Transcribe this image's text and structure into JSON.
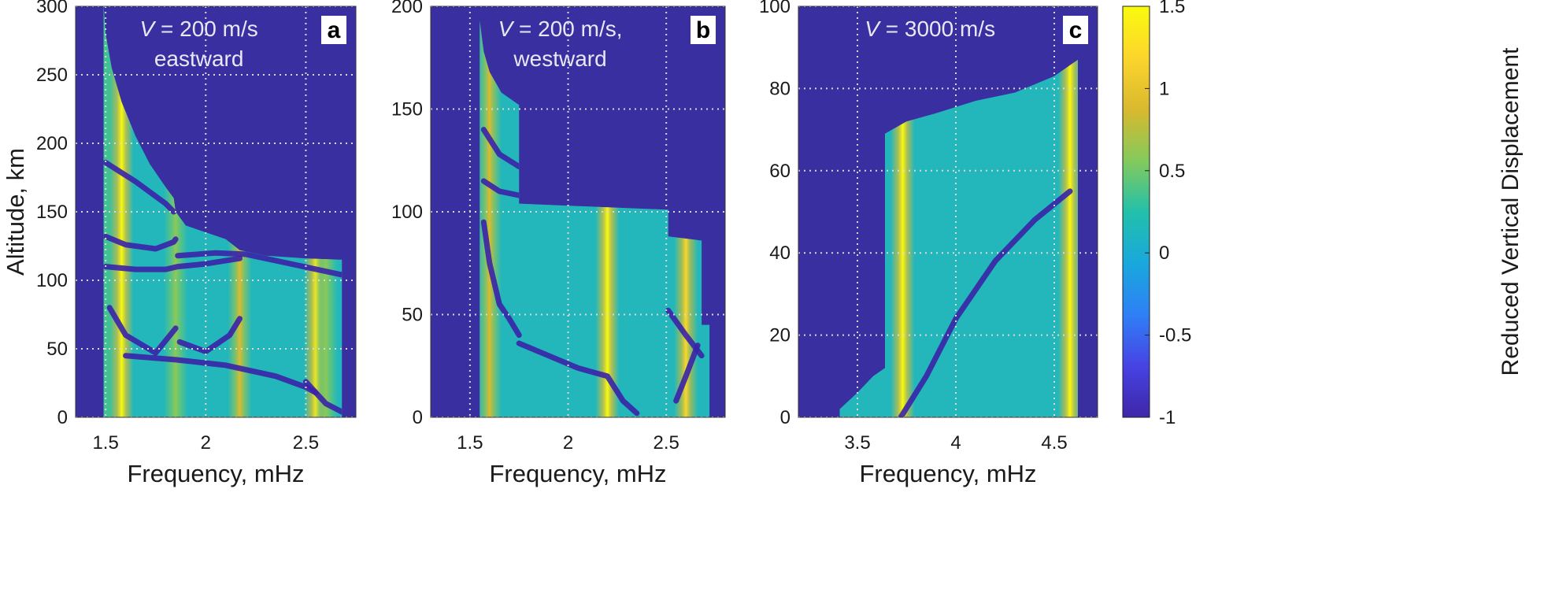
{
  "colors": {
    "background": "#3a2fa0",
    "grid": "#d8d8d8",
    "colormap": [
      "#3e26a8",
      "#4743e4",
      "#2f80f6",
      "#19a8dd",
      "#22c0aa",
      "#84ca5c",
      "#d9b92e",
      "#fcd52c",
      "#f9fb0e"
    ]
  },
  "colorbar": {
    "label": "Reduced Vertical Displacement",
    "range": [
      -1,
      1.5
    ],
    "ticks": [
      1.5,
      1,
      0.5,
      0,
      -0.5,
      -1
    ],
    "tick_labels": [
      "1.5",
      "1",
      "0.5",
      "0",
      "-0.5",
      "-1"
    ]
  },
  "chart_data": [
    {
      "type": "heatmap",
      "panel_label": "a",
      "annotation_line1_var": "V",
      "annotation_line1_rest": " = 200 m/s",
      "annotation_line2": "eastward",
      "xlabel": "Frequency, mHz",
      "ylabel": "Altitude, km",
      "xlim": [
        1.35,
        2.75
      ],
      "ylim": [
        0,
        300
      ],
      "xticks": [
        1.5,
        2,
        2.5
      ],
      "xtick_labels": [
        "1.5",
        "2",
        "2.5"
      ],
      "yticks": [
        0,
        50,
        100,
        150,
        200,
        250,
        300
      ],
      "ytick_labels": [
        "0",
        "50",
        "100",
        "150",
        "200",
        "250",
        "300"
      ],
      "grid": true,
      "boundary": [
        [
          1.49,
          300
        ],
        [
          1.5,
          280
        ],
        [
          1.53,
          255
        ],
        [
          1.58,
          230
        ],
        [
          1.65,
          205
        ],
        [
          1.72,
          185
        ],
        [
          1.8,
          168
        ],
        [
          1.84,
          160
        ],
        [
          1.85,
          150
        ],
        [
          1.9,
          140
        ],
        [
          2.0,
          135
        ],
        [
          2.1,
          130
        ],
        [
          2.17,
          122
        ],
        [
          2.3,
          118
        ],
        [
          2.5,
          116
        ],
        [
          2.68,
          115
        ],
        [
          2.68,
          0
        ]
      ],
      "resonances": [
        [
          1.5,
          0.35
        ],
        [
          1.58,
          1.5
        ],
        [
          1.85,
          0.6
        ],
        [
          2.17,
          0.9
        ],
        [
          2.55,
          1.4
        ],
        [
          2.6,
          0.6
        ]
      ],
      "nodal_lines": [
        [
          [
            1.5,
            186
          ],
          [
            1.65,
            172
          ],
          [
            1.8,
            156
          ],
          [
            1.84,
            150
          ]
        ],
        [
          [
            1.5,
            132
          ],
          [
            1.6,
            126
          ],
          [
            1.75,
            123
          ],
          [
            1.84,
            128
          ],
          [
            1.85,
            130
          ]
        ],
        [
          [
            1.5,
            110
          ],
          [
            1.65,
            108
          ],
          [
            1.8,
            108
          ],
          [
            1.86,
            110
          ],
          [
            2.0,
            112
          ],
          [
            2.17,
            116
          ]
        ],
        [
          [
            1.86,
            118
          ],
          [
            2.05,
            120
          ],
          [
            2.2,
            119
          ],
          [
            2.68,
            104
          ]
        ],
        [
          [
            1.52,
            80
          ],
          [
            1.6,
            60
          ],
          [
            1.75,
            47
          ],
          [
            1.85,
            65
          ]
        ],
        [
          [
            1.87,
            55
          ],
          [
            2.0,
            48
          ],
          [
            2.12,
            60
          ],
          [
            2.17,
            72
          ]
        ],
        [
          [
            1.6,
            45
          ],
          [
            1.85,
            42
          ],
          [
            2.1,
            38
          ],
          [
            2.35,
            30
          ],
          [
            2.5,
            22
          ],
          [
            2.55,
            18
          ]
        ],
        [
          [
            2.5,
            26
          ],
          [
            2.6,
            10
          ],
          [
            2.68,
            4
          ]
        ]
      ]
    },
    {
      "type": "heatmap",
      "panel_label": "b",
      "annotation_line1_var": "V",
      "annotation_line1_rest": " = 200 m/s,",
      "annotation_line2": "westward",
      "xlabel": "Frequency, mHz",
      "xlim": [
        1.3,
        2.8
      ],
      "ylim": [
        0,
        200
      ],
      "xticks": [
        1.5,
        2,
        2.5
      ],
      "xtick_labels": [
        "1.5",
        "2",
        "2.5"
      ],
      "yticks": [
        0,
        50,
        100,
        150,
        200
      ],
      "ytick_labels": [
        "0",
        "50",
        "100",
        "150",
        "200"
      ],
      "grid": true,
      "boundary": [
        [
          1.55,
          193
        ],
        [
          1.57,
          178
        ],
        [
          1.6,
          168
        ],
        [
          1.66,
          158
        ],
        [
          1.75,
          152
        ],
        [
          1.75,
          104
        ],
        [
          2.0,
          103
        ],
        [
          2.51,
          101
        ],
        [
          2.51,
          88
        ],
        [
          2.68,
          86
        ],
        [
          2.68,
          45
        ],
        [
          2.72,
          45
        ],
        [
          2.72,
          0
        ]
      ],
      "resonances": [
        [
          1.6,
          0.9
        ],
        [
          2.2,
          1.5
        ],
        [
          2.6,
          1.2
        ]
      ],
      "nodal_lines": [
        [
          [
            1.57,
            140
          ],
          [
            1.65,
            128
          ],
          [
            1.75,
            122
          ]
        ],
        [
          [
            1.57,
            115
          ],
          [
            1.65,
            110
          ],
          [
            1.75,
            108
          ]
        ],
        [
          [
            1.57,
            95
          ],
          [
            1.6,
            75
          ],
          [
            1.65,
            55
          ],
          [
            1.7,
            48
          ],
          [
            1.75,
            40
          ]
        ],
        [
          [
            1.75,
            36
          ],
          [
            1.9,
            30
          ],
          [
            2.05,
            24
          ],
          [
            2.2,
            20
          ],
          [
            2.28,
            8
          ],
          [
            2.35,
            2
          ]
        ],
        [
          [
            2.51,
            52
          ],
          [
            2.6,
            40
          ],
          [
            2.68,
            30
          ]
        ],
        [
          [
            2.55,
            8
          ],
          [
            2.6,
            20
          ],
          [
            2.66,
            35
          ]
        ]
      ]
    },
    {
      "type": "heatmap",
      "panel_label": "c",
      "annotation_line1_var": "V",
      "annotation_line1_rest": " = 3000 m/s",
      "annotation_line2": "",
      "xlabel": "Frequency, mHz",
      "xlim": [
        3.2,
        4.72
      ],
      "ylim": [
        0,
        100
      ],
      "xticks": [
        3.5,
        4,
        4.5
      ],
      "xtick_labels": [
        "3.5",
        "4",
        "4.5"
      ],
      "yticks": [
        0,
        20,
        40,
        60,
        80,
        100
      ],
      "ytick_labels": [
        "0",
        "20",
        "40",
        "60",
        "80",
        "100"
      ],
      "grid": true,
      "boundary": [
        [
          3.41,
          0
        ],
        [
          3.41,
          2
        ],
        [
          3.5,
          6
        ],
        [
          3.58,
          10
        ],
        [
          3.64,
          12
        ],
        [
          3.64,
          69
        ],
        [
          3.75,
          72
        ],
        [
          3.9,
          74
        ],
        [
          4.1,
          77
        ],
        [
          4.3,
          79
        ],
        [
          4.5,
          83
        ],
        [
          4.62,
          87
        ],
        [
          4.62,
          0
        ]
      ],
      "resonances": [
        [
          3.73,
          1.5
        ],
        [
          4.58,
          1.5
        ]
      ],
      "nodal_lines": [
        [
          [
            3.72,
            0
          ],
          [
            3.85,
            10
          ],
          [
            4.0,
            24
          ],
          [
            4.2,
            38
          ],
          [
            4.4,
            48
          ],
          [
            4.58,
            55
          ]
        ]
      ]
    }
  ]
}
